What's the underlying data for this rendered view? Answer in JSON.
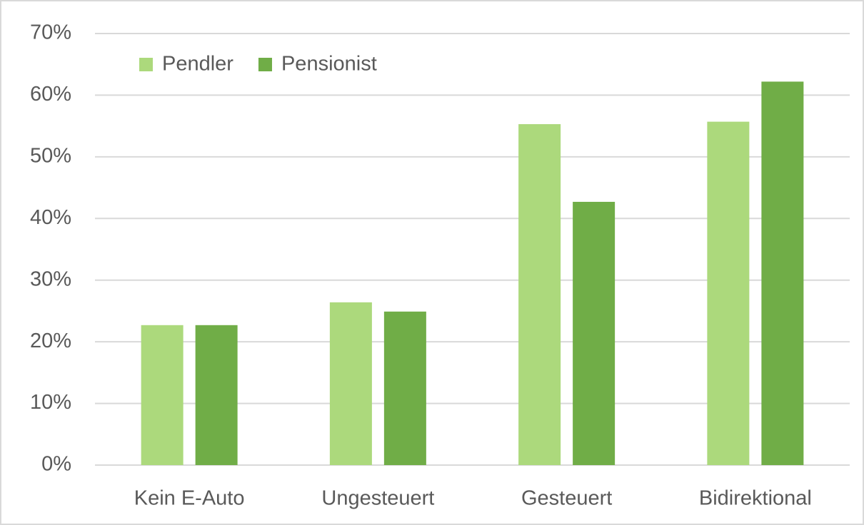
{
  "chart_data": {
    "type": "bar",
    "categories": [
      "Kein E-Auto",
      "Ungesteuert",
      "Gesteuert",
      "Bidirektional"
    ],
    "series": [
      {
        "name": "Pendler",
        "color": "#acd97c",
        "values": [
          22.7,
          26.4,
          55.3,
          55.7
        ]
      },
      {
        "name": "Pensionist",
        "color": "#70ad47",
        "values": [
          22.7,
          24.9,
          42.7,
          62.2
        ]
      }
    ],
    "ylim": [
      0,
      70
    ],
    "yticks": [
      {
        "value": 0,
        "label": "0%"
      },
      {
        "value": 10,
        "label": "10%"
      },
      {
        "value": 20,
        "label": "20%"
      },
      {
        "value": 30,
        "label": "30%"
      },
      {
        "value": 40,
        "label": "40%"
      },
      {
        "value": 50,
        "label": "50%"
      },
      {
        "value": 60,
        "label": "60%"
      },
      {
        "value": 70,
        "label": "70%"
      }
    ],
    "grid": true,
    "legend": "top-left"
  }
}
